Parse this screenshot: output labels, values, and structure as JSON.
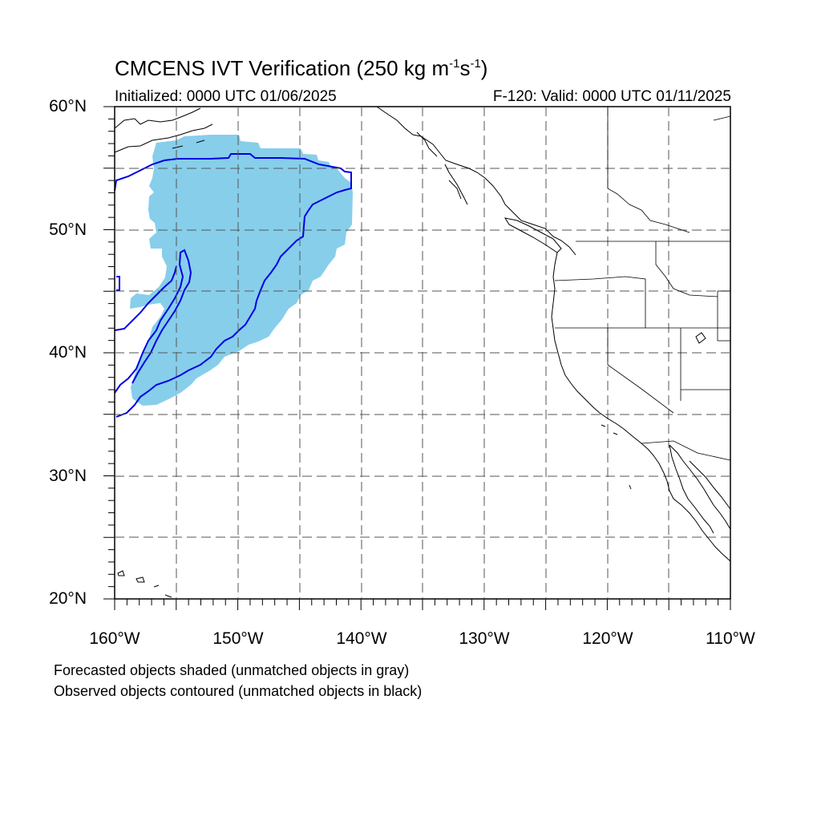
{
  "title": {
    "main_prefix": "CMCENS IVT Verification (250 kg m",
    "exp1": "-1",
    "mid": "s",
    "exp2": "-1",
    "suffix": ")"
  },
  "subtitle": {
    "initialized": "Initialized: 0000 UTC 01/06/2025",
    "valid": "F-120: Valid: 0000 UTC 01/11/2025"
  },
  "axes": {
    "lat_labels": [
      "60°N",
      "50°N",
      "40°N",
      "30°N",
      "20°N"
    ],
    "lon_labels": [
      "160°W",
      "150°W",
      "140°W",
      "130°W",
      "120°W",
      "110°W"
    ],
    "lat_range": [
      20,
      60
    ],
    "lon_range": [
      -160,
      -110
    ],
    "grid": "dashed every 5°"
  },
  "legend_notes": [
    "Forecasted objects shaded (unmatched objects in gray)",
    "Observed objects contoured (unmatched objects in black)"
  ],
  "colors": {
    "forecast_fill": "#87ceeb",
    "observed_contour": "#0000e6",
    "coastline": "#000000",
    "grid": "#555555"
  },
  "objects": {
    "forecast_shaded": "single matched object over NE Pacific, ~36°N–58°N, 159°W–141°W",
    "observed_contours": "matched object outlines over NE Pacific (blue)"
  }
}
